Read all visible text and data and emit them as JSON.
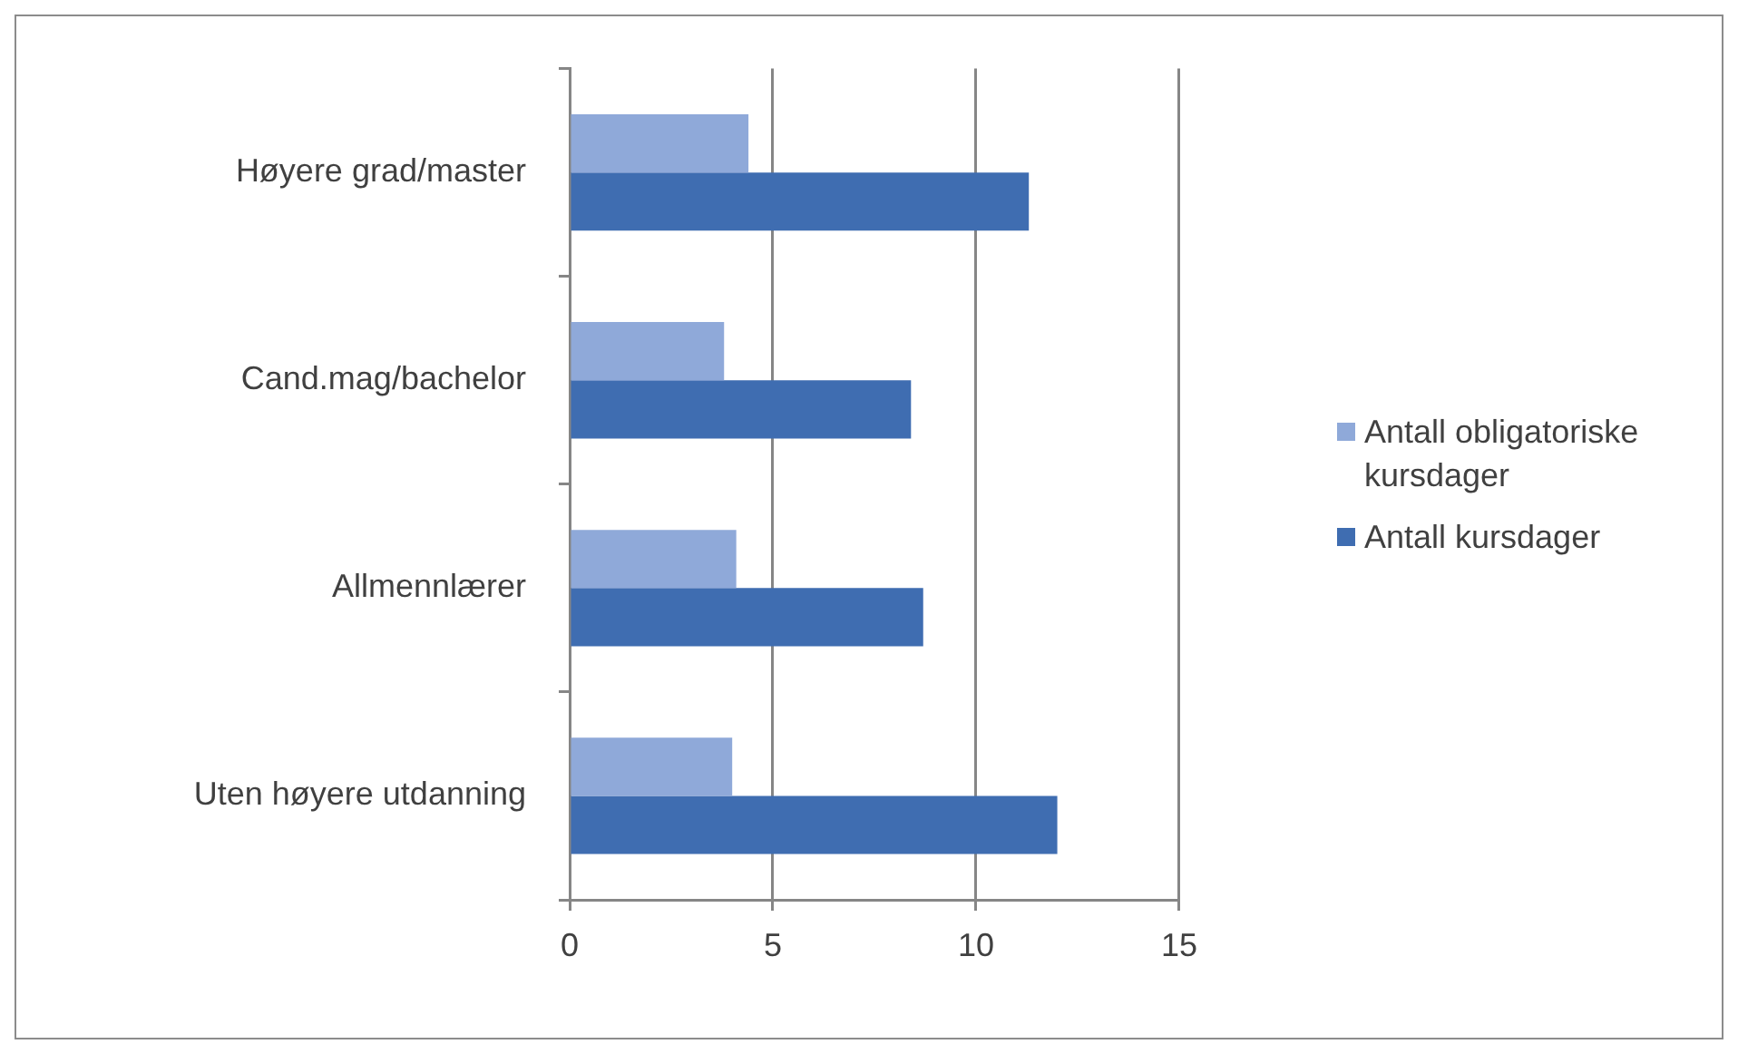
{
  "chart_data": {
    "type": "bar",
    "orientation": "horizontal",
    "categories": [
      "Høyere grad/master",
      "Cand.mag/bachelor",
      "Allmennlærer",
      "Uten høyere utdanning"
    ],
    "series": [
      {
        "name": "Antall obligatoriske kursdager",
        "color": "#8fa9d9",
        "values": [
          4.4,
          3.8,
          4.1,
          4.0
        ]
      },
      {
        "name": "Antall kursdager",
        "color": "#3f6db1",
        "values": [
          11.3,
          8.4,
          8.7,
          12.0
        ]
      }
    ],
    "xlim": [
      0,
      15
    ],
    "xticks": [
      0,
      5,
      10,
      15
    ],
    "grid": "x",
    "legend": "right"
  }
}
